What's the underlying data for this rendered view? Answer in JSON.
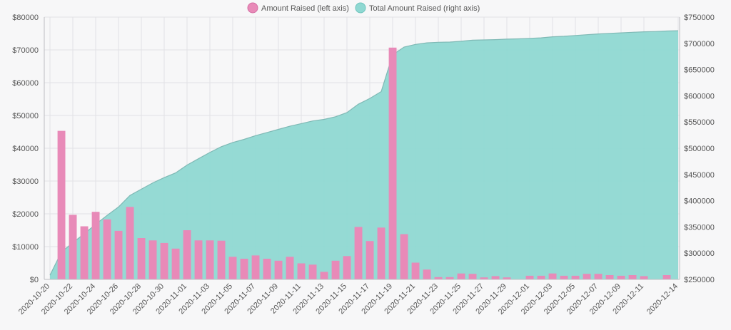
{
  "chart_data": {
    "type": "bar",
    "legend": {
      "placement": "top-center",
      "entries": [
        {
          "label": "Amount Raised (left axis)",
          "color": "#e88ab8"
        },
        {
          "label": "Total Amount Raised (right axis)",
          "color": "#8fd8d2"
        }
      ]
    },
    "x_tick_labels": [
      "2020-10-20",
      "2020-10-22",
      "2020-10-24",
      "2020-10-26",
      "2020-10-28",
      "2020-10-30",
      "2020-11-01",
      "2020-11-03",
      "2020-11-05",
      "2020-11-07",
      "2020-11-09",
      "2020-11-11",
      "2020-11-13",
      "2020-11-15",
      "2020-11-17",
      "2020-11-19",
      "2020-11-21",
      "2020-11-23",
      "2020-11-25",
      "2020-11-27",
      "2020-11-29",
      "2020-12-01",
      "2020-12-03",
      "2020-12-05",
      "2020-12-07",
      "2020-12-09",
      "2020-12-11",
      "2020-12-14"
    ],
    "left_axis": {
      "ylim": [
        0,
        80000
      ],
      "tick_labels": [
        "$0",
        "$10000",
        "$20000",
        "$30000",
        "$40000",
        "$50000",
        "$60000",
        "$70000",
        "$80000"
      ],
      "tick_values": [
        0,
        10000,
        20000,
        30000,
        40000,
        50000,
        60000,
        70000,
        80000
      ]
    },
    "right_axis": {
      "ylim": [
        250000,
        750000
      ],
      "tick_labels": [
        "$250000",
        "$300000",
        "$350000",
        "$400000",
        "$450000",
        "$500000",
        "$550000",
        "$600000",
        "$650000",
        "$700000",
        "$750000"
      ],
      "tick_values": [
        250000,
        300000,
        350000,
        400000,
        450000,
        500000,
        550000,
        600000,
        650000,
        700000,
        750000
      ]
    },
    "grid": true,
    "x_start": "2020-10-20",
    "x_end": "2020-12-14",
    "series": [
      {
        "name": "Amount Raised (left axis)",
        "type": "bar",
        "axis": "left",
        "color": "#e88ab8",
        "points": [
          {
            "x": "2020-10-21",
            "y": 45300
          },
          {
            "x": "2020-10-22",
            "y": 19700
          },
          {
            "x": "2020-10-23",
            "y": 16200
          },
          {
            "x": "2020-10-24",
            "y": 20600
          },
          {
            "x": "2020-10-25",
            "y": 18300
          },
          {
            "x": "2020-10-26",
            "y": 14800
          },
          {
            "x": "2020-10-27",
            "y": 22100
          },
          {
            "x": "2020-10-28",
            "y": 12600
          },
          {
            "x": "2020-10-29",
            "y": 11900
          },
          {
            "x": "2020-10-30",
            "y": 11100
          },
          {
            "x": "2020-10-31",
            "y": 9400
          },
          {
            "x": "2020-11-01",
            "y": 15000
          },
          {
            "x": "2020-11-02",
            "y": 11900
          },
          {
            "x": "2020-11-03",
            "y": 11900
          },
          {
            "x": "2020-11-04",
            "y": 11800
          },
          {
            "x": "2020-11-05",
            "y": 6900
          },
          {
            "x": "2020-11-06",
            "y": 6300
          },
          {
            "x": "2020-11-07",
            "y": 7300
          },
          {
            "x": "2020-11-08",
            "y": 6300
          },
          {
            "x": "2020-11-09",
            "y": 5700
          },
          {
            "x": "2020-11-10",
            "y": 6900
          },
          {
            "x": "2020-11-11",
            "y": 4900
          },
          {
            "x": "2020-11-12",
            "y": 4500
          },
          {
            "x": "2020-11-13",
            "y": 2300
          },
          {
            "x": "2020-11-14",
            "y": 5700
          },
          {
            "x": "2020-11-15",
            "y": 7100
          },
          {
            "x": "2020-11-16",
            "y": 16000
          },
          {
            "x": "2020-11-17",
            "y": 11700
          },
          {
            "x": "2020-11-18",
            "y": 15800
          },
          {
            "x": "2020-11-19",
            "y": 70700
          },
          {
            "x": "2020-11-20",
            "y": 13800
          },
          {
            "x": "2020-11-21",
            "y": 5100
          },
          {
            "x": "2020-11-22",
            "y": 3000
          },
          {
            "x": "2020-11-23",
            "y": 700
          },
          {
            "x": "2020-11-24",
            "y": 700
          },
          {
            "x": "2020-11-25",
            "y": 1800
          },
          {
            "x": "2020-11-26",
            "y": 1700
          },
          {
            "x": "2020-11-27",
            "y": 600
          },
          {
            "x": "2020-11-28",
            "y": 1000
          },
          {
            "x": "2020-11-29",
            "y": 600
          },
          {
            "x": "2020-12-01",
            "y": 1100
          },
          {
            "x": "2020-12-02",
            "y": 1100
          },
          {
            "x": "2020-12-03",
            "y": 1800
          },
          {
            "x": "2020-12-04",
            "y": 1100
          },
          {
            "x": "2020-12-05",
            "y": 1100
          },
          {
            "x": "2020-12-06",
            "y": 1700
          },
          {
            "x": "2020-12-07",
            "y": 1700
          },
          {
            "x": "2020-12-08",
            "y": 1300
          },
          {
            "x": "2020-12-09",
            "y": 1100
          },
          {
            "x": "2020-12-10",
            "y": 1300
          },
          {
            "x": "2020-12-11",
            "y": 1000
          },
          {
            "x": "2020-12-13",
            "y": 1300
          }
        ]
      },
      {
        "name": "Total Amount Raised (right axis)",
        "type": "area",
        "axis": "right",
        "color": "#8fd8d2",
        "points": [
          {
            "x": "2020-10-20",
            "y": 258000
          },
          {
            "x": "2020-10-21",
            "y": 302000
          },
          {
            "x": "2020-10-22",
            "y": 320000
          },
          {
            "x": "2020-10-23",
            "y": 337000
          },
          {
            "x": "2020-10-24",
            "y": 355000
          },
          {
            "x": "2020-10-25",
            "y": 372000
          },
          {
            "x": "2020-10-26",
            "y": 388000
          },
          {
            "x": "2020-10-27",
            "y": 410000
          },
          {
            "x": "2020-10-28",
            "y": 422000
          },
          {
            "x": "2020-10-29",
            "y": 434000
          },
          {
            "x": "2020-10-30",
            "y": 444000
          },
          {
            "x": "2020-10-31",
            "y": 453000
          },
          {
            "x": "2020-11-01",
            "y": 468000
          },
          {
            "x": "2020-11-02",
            "y": 480000
          },
          {
            "x": "2020-11-03",
            "y": 492000
          },
          {
            "x": "2020-11-04",
            "y": 503000
          },
          {
            "x": "2020-11-05",
            "y": 511000
          },
          {
            "x": "2020-11-06",
            "y": 517000
          },
          {
            "x": "2020-11-07",
            "y": 524000
          },
          {
            "x": "2020-11-08",
            "y": 530000
          },
          {
            "x": "2020-11-09",
            "y": 536000
          },
          {
            "x": "2020-11-10",
            "y": 542000
          },
          {
            "x": "2020-11-11",
            "y": 547000
          },
          {
            "x": "2020-11-12",
            "y": 552000
          },
          {
            "x": "2020-11-13",
            "y": 555000
          },
          {
            "x": "2020-11-14",
            "y": 560000
          },
          {
            "x": "2020-11-15",
            "y": 568000
          },
          {
            "x": "2020-11-16",
            "y": 584000
          },
          {
            "x": "2020-11-17",
            "y": 595000
          },
          {
            "x": "2020-11-18",
            "y": 608000
          },
          {
            "x": "2020-11-19",
            "y": 678000
          },
          {
            "x": "2020-11-20",
            "y": 693000
          },
          {
            "x": "2020-11-21",
            "y": 698000
          },
          {
            "x": "2020-11-22",
            "y": 701000
          },
          {
            "x": "2020-11-23",
            "y": 702000
          },
          {
            "x": "2020-11-24",
            "y": 702500
          },
          {
            "x": "2020-11-25",
            "y": 704000
          },
          {
            "x": "2020-11-26",
            "y": 706000
          },
          {
            "x": "2020-11-27",
            "y": 706500
          },
          {
            "x": "2020-11-28",
            "y": 707000
          },
          {
            "x": "2020-11-29",
            "y": 708000
          },
          {
            "x": "2020-11-30",
            "y": 708500
          },
          {
            "x": "2020-12-01",
            "y": 709500
          },
          {
            "x": "2020-12-02",
            "y": 710500
          },
          {
            "x": "2020-12-03",
            "y": 712500
          },
          {
            "x": "2020-12-04",
            "y": 713500
          },
          {
            "x": "2020-12-05",
            "y": 715000
          },
          {
            "x": "2020-12-06",
            "y": 716500
          },
          {
            "x": "2020-12-07",
            "y": 718000
          },
          {
            "x": "2020-12-08",
            "y": 719000
          },
          {
            "x": "2020-12-09",
            "y": 720000
          },
          {
            "x": "2020-12-10",
            "y": 721000
          },
          {
            "x": "2020-12-11",
            "y": 722000
          },
          {
            "x": "2020-12-12",
            "y": 722500
          },
          {
            "x": "2020-12-13",
            "y": 723500
          },
          {
            "x": "2020-12-14",
            "y": 724000
          }
        ]
      }
    ]
  }
}
